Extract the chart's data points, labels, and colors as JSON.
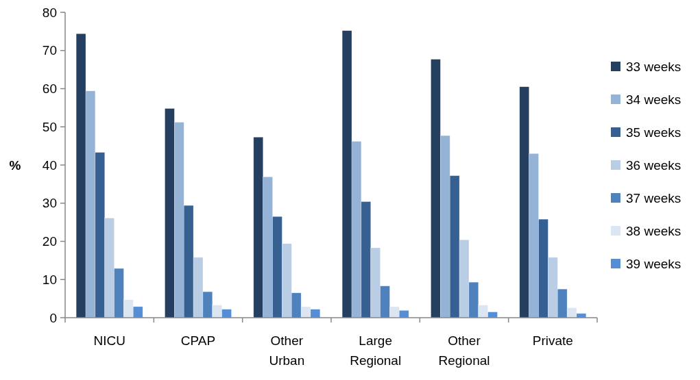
{
  "chart_data": {
    "type": "bar",
    "ylabel": "%",
    "categories": [
      "NICU",
      "CPAP",
      "Other Urban",
      "Large Regional",
      "Other Regional",
      "Private"
    ],
    "series": [
      {
        "name": "33 weeks",
        "color": "#243f60",
        "values": [
          74.4,
          54.8,
          47.3,
          75.2,
          67.7,
          60.5
        ]
      },
      {
        "name": "34 weeks",
        "color": "#95b3d7",
        "values": [
          59.4,
          51.2,
          36.9,
          46.2,
          47.7,
          43.0
        ]
      },
      {
        "name": "35 weeks",
        "color": "#366092",
        "values": [
          43.3,
          29.4,
          26.5,
          30.4,
          37.2,
          25.8
        ]
      },
      {
        "name": "36 weeks",
        "color": "#b9cde5",
        "values": [
          26.1,
          15.8,
          19.4,
          18.3,
          20.4,
          15.8
        ]
      },
      {
        "name": "37 weeks",
        "color": "#4f81bd",
        "values": [
          12.9,
          6.8,
          6.5,
          8.3,
          9.3,
          7.5
        ]
      },
      {
        "name": "38 weeks",
        "color": "#dce6f2",
        "values": [
          4.7,
          3.3,
          2.9,
          2.9,
          3.3,
          2.6
        ]
      },
      {
        "name": "39 weeks",
        "color": "#558ed5",
        "values": [
          2.9,
          2.2,
          2.2,
          1.9,
          1.5,
          1.1
        ]
      }
    ],
    "ylim": [
      0,
      80
    ],
    "yticks": [
      0,
      10,
      20,
      30,
      40,
      50,
      60,
      70,
      80
    ],
    "grid": false,
    "legend": "right"
  }
}
